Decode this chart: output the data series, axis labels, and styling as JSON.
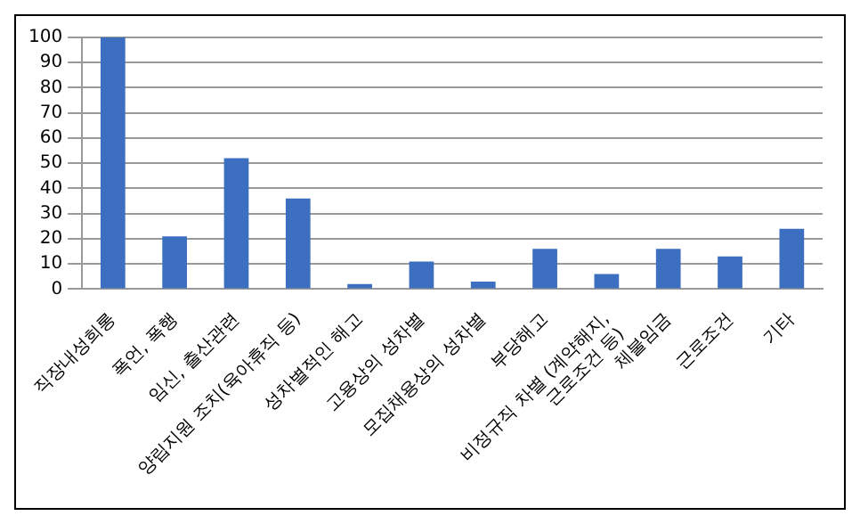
{
  "chart_data": {
    "type": "bar",
    "categories": [
      "직장내성희롱",
      "폭언, 폭행",
      "임신, 출산관련",
      "양립지원 조치(육아휴직 등)",
      "성차별적인 해고",
      "고용상의 성차별",
      "모집채용상의 성차별",
      "부당해고",
      "비정규직 차별 (계약해지, 근로조건 등)",
      "체불임금",
      "근로조건",
      "기타"
    ],
    "values": [
      100,
      21,
      52,
      36,
      2,
      11,
      3,
      16,
      6,
      16,
      13,
      24
    ],
    "color": "#3d6fc0",
    "ylim": [
      0,
      100
    ],
    "yticks": [
      0,
      10,
      20,
      30,
      40,
      50,
      60,
      70,
      80,
      90,
      100
    ],
    "grid": "y"
  }
}
